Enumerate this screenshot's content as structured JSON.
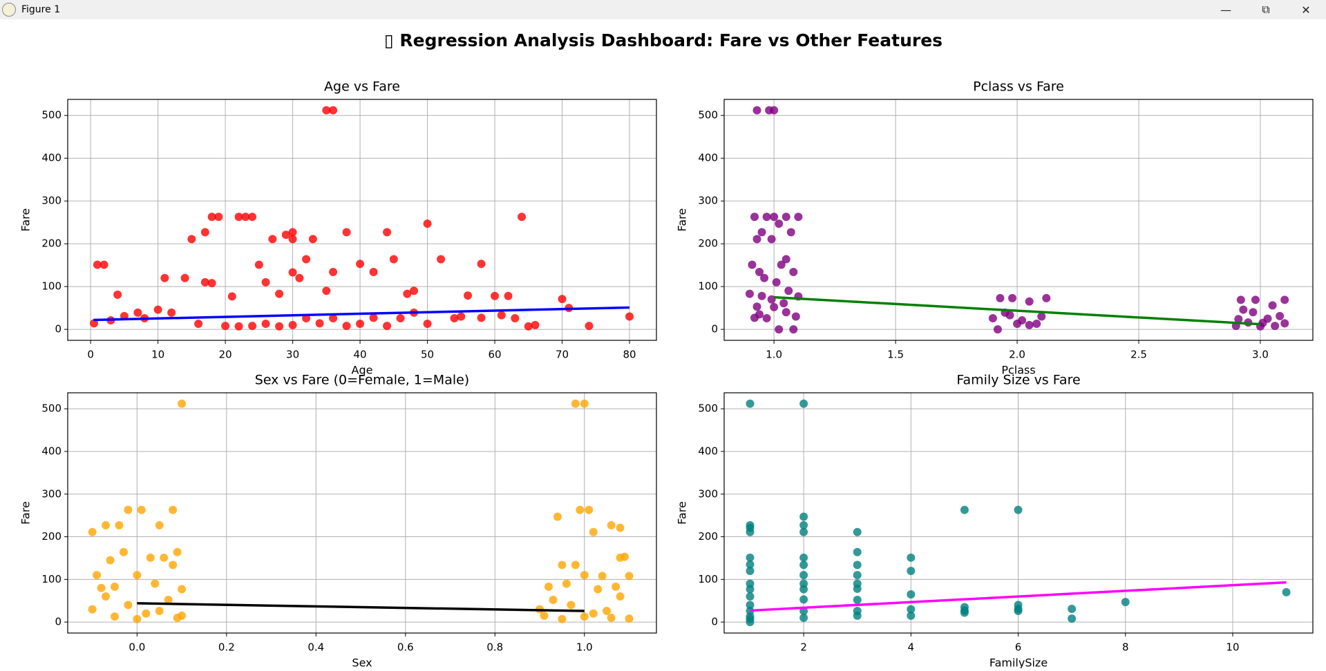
{
  "window": {
    "title": "Figure 1"
  },
  "title": "▯ Regression Analysis Dashboard: Fare vs Other Features",
  "chart_data": [
    {
      "type": "scatter",
      "title": "Age vs Fare",
      "x_label": "Age",
      "y_label": "Fare",
      "color": "#ff0000",
      "grid": true,
      "xlim": [
        -3.4,
        84
      ],
      "ylim": [
        -25.7,
        537.5
      ],
      "xticks": [
        0,
        10,
        20,
        30,
        40,
        50,
        60,
        70,
        80
      ],
      "yticks": [
        0,
        100,
        200,
        300,
        400,
        500
      ],
      "x": [
        35,
        36,
        18,
        19,
        22,
        24,
        64,
        50,
        17,
        30,
        38,
        44,
        23,
        15,
        27,
        33,
        29,
        30,
        52,
        45,
        32,
        1,
        2,
        25,
        58,
        40,
        36,
        42,
        11,
        14,
        18,
        17,
        26,
        30,
        47,
        4,
        48,
        62,
        60,
        70,
        56,
        31,
        35,
        28,
        21,
        10,
        5,
        8,
        12,
        16,
        20,
        22,
        24,
        26,
        28,
        30,
        32,
        34,
        36,
        38,
        40,
        42,
        44,
        46,
        48,
        50,
        54,
        58,
        61,
        65,
        71,
        74,
        80,
        0.5,
        3,
        7,
        66,
        55,
        63
      ],
      "y": [
        512,
        512,
        263,
        263,
        263,
        263,
        263,
        247,
        227,
        227,
        227,
        227,
        263,
        211,
        211,
        211,
        221,
        211,
        164,
        164,
        164,
        151,
        151,
        151,
        153,
        153,
        134,
        134,
        120,
        120,
        108,
        110,
        110,
        133,
        83,
        81,
        90,
        78,
        78,
        71,
        79,
        120,
        90,
        83,
        77,
        46,
        31,
        26,
        39,
        13,
        8,
        7,
        8,
        13,
        7,
        10,
        26,
        14,
        26,
        8,
        13,
        27,
        8,
        26,
        39,
        13,
        26,
        27,
        33,
        7,
        50,
        8,
        30,
        14,
        21,
        39,
        10,
        30,
        26
      ],
      "fit": {
        "color": "#0000ff",
        "x": [
          0.42,
          80
        ],
        "y": [
          22,
          51
        ]
      }
    },
    {
      "type": "scatter",
      "title": "Pclass vs Fare",
      "x_label": "Pclass",
      "y_label": "Fare",
      "color": "#800080",
      "grid": true,
      "xlim": [
        0.795,
        3.216
      ],
      "ylim": [
        -25.7,
        537.5
      ],
      "xticks": [
        {
          "value": 1,
          "label": "1.0"
        },
        1.5,
        {
          "value": 2,
          "label": "2.0"
        },
        2.5,
        {
          "value": 3,
          "label": "3.0"
        }
      ],
      "yticks": [
        0,
        100,
        200,
        300,
        400,
        500
      ],
      "x": [
        0.93,
        0.98,
        1.0,
        0.93,
        0.95,
        0.97,
        1.0,
        1.05,
        1.1,
        0.92,
        1.02,
        1.07,
        0.99,
        1.05,
        1.03,
        0.91,
        0.94,
        1.08,
        0.96,
        1.01,
        1.06,
        0.9,
        0.95,
        1.1,
        0.93,
        1.0,
        1.04,
        1.09,
        0.92,
        0.97,
        1.02,
        1.08,
        1.05,
        0.99,
        0.94,
        1.93,
        1.98,
        2.05,
        2.12,
        1.9,
        2.0,
        2.05,
        2.1,
        1.95,
        2.02,
        1.92,
        2.08,
        1.97,
        2.92,
        2.98,
        3.05,
        3.1,
        2.9,
        2.95,
        3.0,
        3.03,
        3.08,
        2.93,
        3.01,
        3.06,
        2.97,
        3.1,
        2.91
      ],
      "y": [
        512,
        512,
        512,
        211,
        227,
        263,
        263,
        263,
        263,
        263,
        247,
        227,
        211,
        164,
        151,
        151,
        134,
        134,
        120,
        110,
        90,
        83,
        78,
        77,
        53,
        52,
        61,
        30,
        27,
        26,
        0,
        0,
        40,
        70,
        35,
        73,
        73,
        65,
        73,
        26,
        13,
        10,
        30,
        39,
        21,
        0,
        13,
        33,
        69,
        69,
        56,
        69,
        8,
        16,
        7,
        25,
        31,
        46,
        15,
        8,
        40,
        14,
        24
      ],
      "fit": {
        "color": "#008000",
        "x": [
          1,
          3
        ],
        "y": [
          75,
          12
        ]
      }
    },
    {
      "type": "scatter",
      "title": "Sex vs Fare (0=Female, 1=Male)",
      "x_label": "Sex",
      "y_label": "Fare",
      "color": "#ffa500",
      "grid": true,
      "xlim": [
        -0.155,
        1.161
      ],
      "ylim": [
        -25.7,
        537.5
      ],
      "xticks": [
        {
          "value": 0,
          "label": "0.0"
        },
        0.2,
        0.4,
        0.6,
        0.8,
        {
          "value": 1,
          "label": "1.0"
        }
      ],
      "yticks": [
        0,
        100,
        200,
        300,
        400,
        500
      ],
      "x": [
        0.1,
        -0.1,
        -0.07,
        -0.04,
        -0.02,
        0.01,
        0.08,
        0.05,
        -0.06,
        -0.03,
        0.09,
        0.03,
        0.06,
        0.08,
        -0.09,
        -0.05,
        0,
        0.04,
        0.1,
        -0.08,
        -0.1,
        -0.05,
        0,
        0.05,
        0.09,
        -0.02,
        0.07,
        -0.07,
        0.02,
        0.1,
        0.98,
        1,
        0.94,
        0.99,
        1.01,
        1.02,
        1.06,
        1.08,
        1.08,
        1.09,
        0.95,
        0.98,
        1,
        1.04,
        1.1,
        0.92,
        0.96,
        1.03,
        1.07,
        0.9,
        0.95,
        1,
        1.05,
        1.1,
        0.93,
        0.97,
        1.02,
        1.08,
        0.91,
        1.06
      ],
      "y": [
        512,
        211,
        227,
        227,
        263,
        263,
        263,
        227,
        145,
        164,
        164,
        151,
        151,
        134,
        110,
        83,
        110,
        90,
        77,
        80,
        30,
        13,
        7,
        26,
        10,
        40,
        52,
        60,
        20,
        15,
        512,
        512,
        247,
        263,
        263,
        211,
        227,
        221,
        151,
        153,
        134,
        134,
        110,
        108,
        108,
        83,
        90,
        77,
        83,
        30,
        7,
        13,
        26,
        8,
        52,
        40,
        20,
        60,
        15,
        10
      ],
      "fit": {
        "color": "#000000",
        "x": [
          0,
          1
        ],
        "y": [
          44,
          26
        ]
      }
    },
    {
      "type": "scatter",
      "title": "Family Size vs Fare",
      "x_label": "FamilySize",
      "y_label": "Fare",
      "color": "#008080",
      "grid": true,
      "xlim": [
        0.517,
        11.495
      ],
      "ylim": [
        -25.7,
        537.5
      ],
      "xticks": [
        2,
        4,
        6,
        8,
        10
      ],
      "yticks": [
        0,
        100,
        200,
        300,
        400,
        500
      ],
      "x": [
        1,
        2,
        1,
        1,
        1,
        1,
        1,
        1,
        1,
        1,
        1,
        1,
        1,
        1,
        1,
        1,
        2,
        2,
        2,
        2,
        2,
        2,
        2,
        2,
        2,
        2,
        2,
        3,
        3,
        3,
        3,
        3,
        3,
        3,
        3,
        3,
        4,
        4,
        4,
        4,
        4,
        5,
        5,
        5,
        5,
        6,
        6,
        6,
        6,
        7,
        7,
        8,
        11
      ],
      "y": [
        512,
        512,
        227,
        211,
        221,
        151,
        135,
        120,
        90,
        77,
        60,
        40,
        26,
        13,
        7,
        0,
        247,
        227,
        211,
        151,
        134,
        110,
        90,
        77,
        53,
        26,
        10,
        211,
        164,
        134,
        110,
        90,
        78,
        52,
        26,
        15,
        151,
        120,
        65,
        30,
        15,
        263,
        35,
        27,
        22,
        263,
        40,
        31,
        26,
        31,
        8,
        47,
        70
      ],
      "fit": {
        "color": "#ff00ff",
        "x": [
          1,
          11
        ],
        "y": [
          27,
          93
        ]
      }
    }
  ]
}
